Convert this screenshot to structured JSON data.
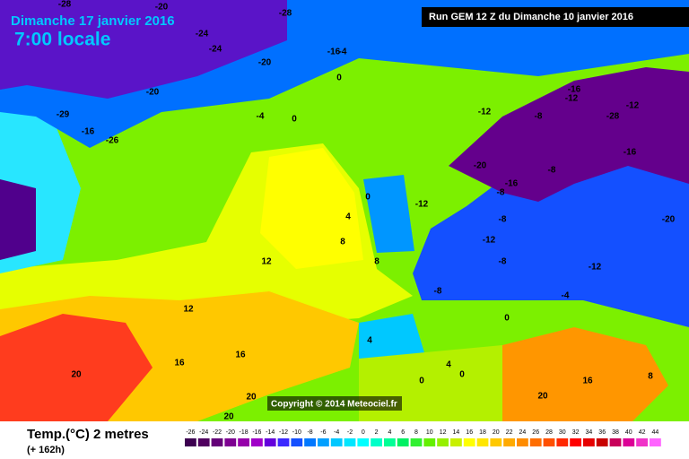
{
  "header": {
    "date": "Dimanche 17 janvier 2016",
    "time": "7:00 locale",
    "run": "Run GEM 12 Z du Dimanche 10 janvier 2016",
    "copyright": "Copyright © 2014 Meteociel.fr"
  },
  "legend": {
    "title": "Temp.(°C) 2 metres",
    "subtitle": "(+ 162h)",
    "ticks": [
      -26,
      -24,
      -22,
      -20,
      -18,
      -16,
      -14,
      -12,
      -10,
      -8,
      -6,
      -4,
      -2,
      0,
      2,
      4,
      6,
      8,
      10,
      12,
      14,
      16,
      18,
      20,
      22,
      24,
      26,
      28,
      30,
      32,
      34,
      36,
      38,
      40,
      42,
      44
    ],
    "colors": [
      "#3c0050",
      "#50005f",
      "#640078",
      "#7d0091",
      "#9600aa",
      "#a000c8",
      "#6400dc",
      "#3c28ff",
      "#1450ff",
      "#0078ff",
      "#00a0ff",
      "#00c8ff",
      "#00e6ff",
      "#00ffff",
      "#00ffc8",
      "#00ff96",
      "#00f064",
      "#32f032",
      "#64f000",
      "#96f000",
      "#c8f000",
      "#ffff00",
      "#ffe600",
      "#ffc800",
      "#ffaa00",
      "#ff8c00",
      "#ff6e00",
      "#ff5000",
      "#ff2800",
      "#ff0000",
      "#e60000",
      "#c80000",
      "#c8005a",
      "#dc0096",
      "#f032c8",
      "#ff64ff"
    ]
  },
  "map": {
    "labels": [
      -28,
      -20,
      -24,
      -28,
      -24,
      -20,
      -16,
      -20,
      -29,
      -16,
      -26,
      -4,
      0,
      -4,
      0,
      -12,
      -8,
      -8,
      -20,
      -16,
      -12,
      -8,
      -16,
      -28,
      -12,
      -16,
      -20,
      -8,
      -12,
      -12,
      -8,
      -12,
      -8,
      -4,
      0,
      4,
      0,
      4,
      8,
      8,
      12,
      12,
      16,
      16,
      20,
      20,
      20,
      16,
      0,
      0,
      4,
      8,
      20
    ]
  }
}
